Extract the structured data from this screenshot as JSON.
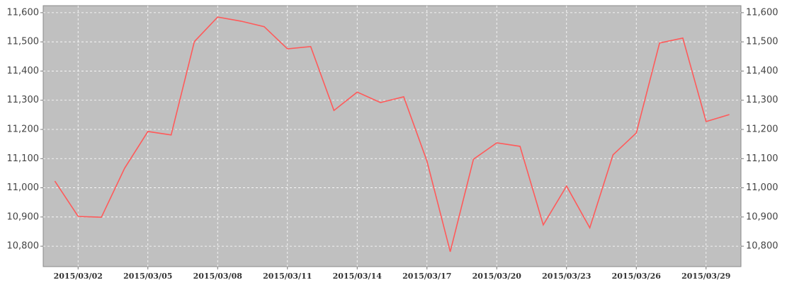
{
  "chart_data": {
    "type": "line",
    "categories": [
      null,
      "2015/03/02",
      null,
      null,
      "2015/03/05",
      null,
      null,
      "2015/03/08",
      null,
      null,
      "2015/03/11",
      null,
      null,
      "2015/03/14",
      null,
      null,
      "2015/03/17",
      null,
      null,
      "2015/03/20",
      null,
      null,
      "2015/03/23",
      null,
      null,
      "2015/03/26",
      null,
      null,
      "2015/03/29",
      null
    ],
    "values": [
      11023,
      10902,
      10899,
      11067,
      11193,
      11181,
      11501,
      11585,
      11571,
      11552,
      11476,
      11484,
      11265,
      11328,
      11292,
      11312,
      11091,
      10781,
      11098,
      11154,
      11142,
      10873,
      11006,
      10863,
      11113,
      11188,
      11496,
      11513,
      11227,
      11251
    ],
    "color": "#ff5a5a",
    "ylim": [
      10730,
      11624
    ],
    "yticks": [
      {
        "value": 10800,
        "label": "10,800"
      },
      {
        "value": 10900,
        "label": "10,900"
      },
      {
        "value": 11000,
        "label": "11,000"
      },
      {
        "value": 11100,
        "label": "11,100"
      },
      {
        "value": 11200,
        "label": "11,200"
      },
      {
        "value": 11300,
        "label": "11,300"
      },
      {
        "value": 11400,
        "label": "11,400"
      },
      {
        "value": 11500,
        "label": "11,500"
      },
      {
        "value": 11600,
        "label": "11,600"
      }
    ],
    "grid": true
  }
}
